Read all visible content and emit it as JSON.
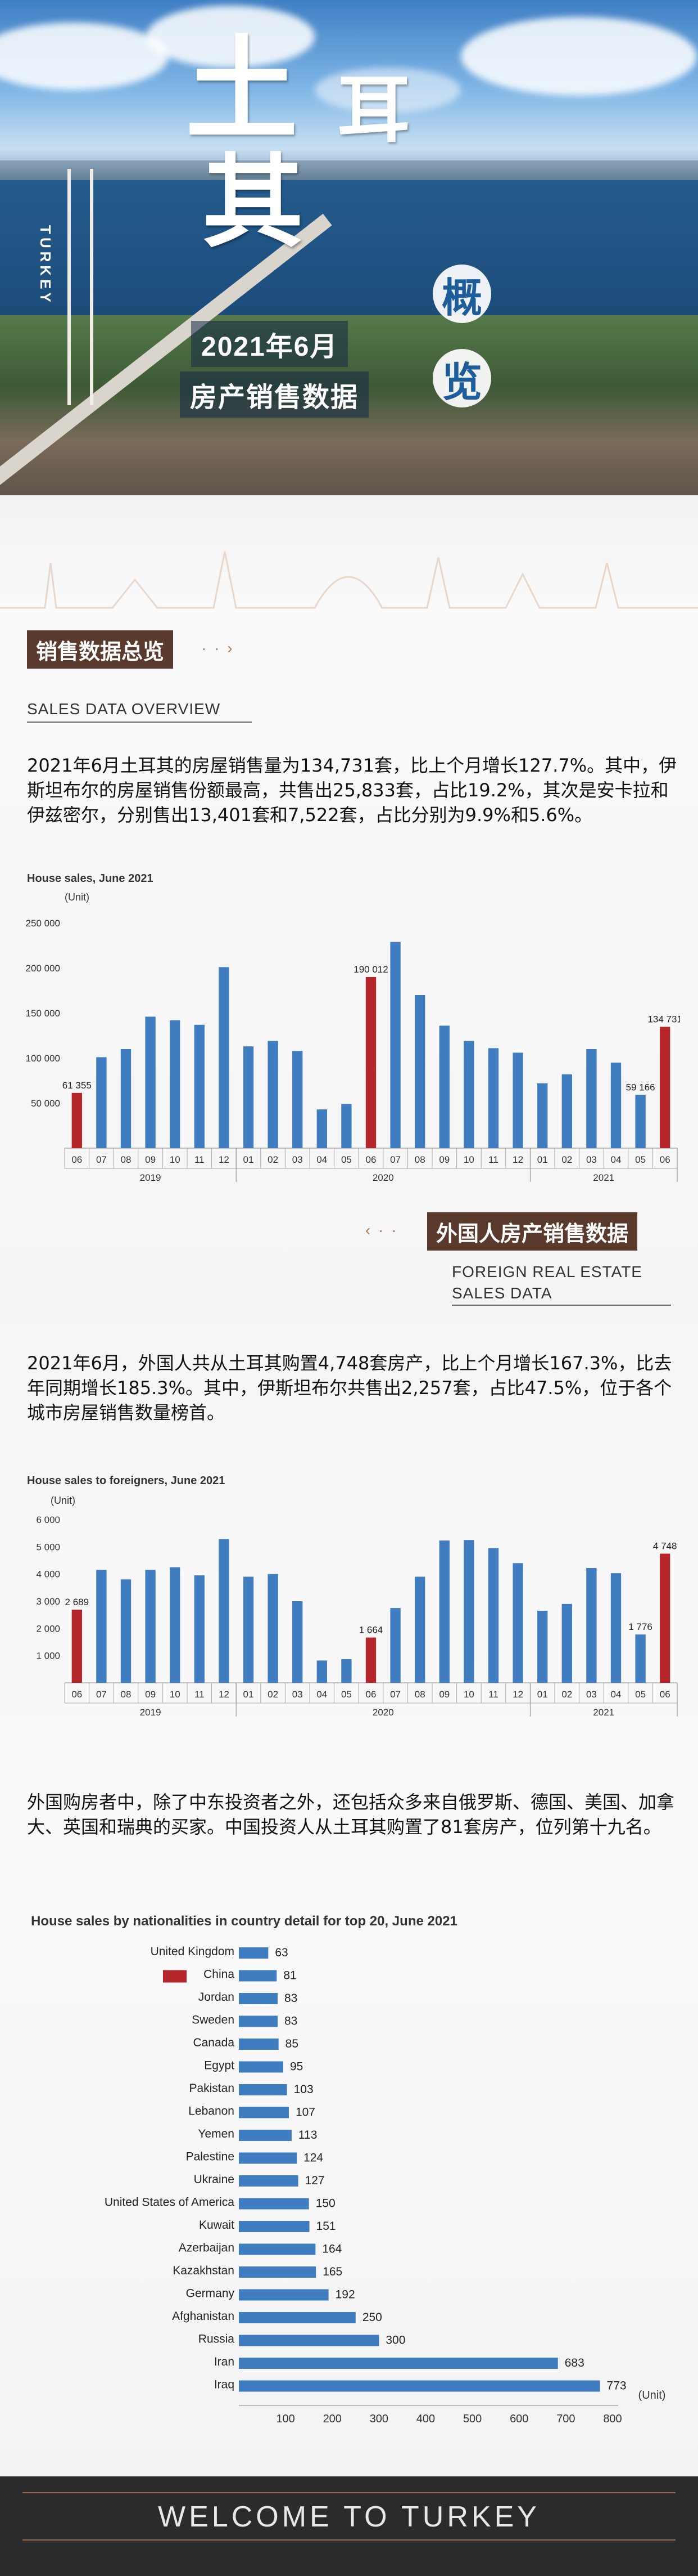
{
  "hero": {
    "turkey_vertical": "TURKEY",
    "title_chars": [
      "土",
      "耳",
      "其"
    ],
    "gai": "概",
    "lan": "览",
    "banner_line1": "2021年6月",
    "banner_line2": "房产销售数据"
  },
  "section1": {
    "title": "销售数据总览",
    "subtitle": "SALES DATA OVERVIEW",
    "paragraph": "2021年6月土耳其的房屋销售量为134,731套，比上个月增长127.7%。其中，伊斯坦布尔的房屋销售份额最高，共售出25,833套，占比19.2%，其次是安卡拉和伊兹密尔，分别售出13,401套和7,522套，占比分别为9.9%和5.6%。"
  },
  "section2": {
    "title": "外国人房产销售数据",
    "subtitle_line1": "FOREIGN REAL ESTATE",
    "subtitle_line2": "SALES DATA",
    "paragraph": "2021年6月，外国人共从土耳其购置4,748套房产，比上个月增长167.3%，比去年同期增长185.3%。其中，伊斯坦布尔共售出2,257套，占比47.5%，位于各个城市房屋销售数量榜首。",
    "paragraph2": "外国购房者中，除了中东投资者之外，还包括众多来自俄罗斯、德国、美国、加拿大、英国和瑞典的买家。中国投资人从土耳其购置了81套房产，位列第十九名。"
  },
  "colors": {
    "bar_blue": "#3f7cc0",
    "bar_red": "#b5262b",
    "section_brown": "#5a3a2c"
  },
  "chart_data": [
    {
      "type": "bar",
      "title": "House sales, June 2021",
      "unit": "(Unit)",
      "categories": [
        "06",
        "07",
        "08",
        "09",
        "10",
        "11",
        "12",
        "01",
        "02",
        "03",
        "04",
        "05",
        "06",
        "07",
        "08",
        "09",
        "10",
        "11",
        "12",
        "01",
        "02",
        "03",
        "04",
        "05",
        "06"
      ],
      "year_labels": [
        "2019",
        "2020",
        "2021"
      ],
      "values": [
        61355,
        101000,
        110000,
        146000,
        142000,
        137000,
        201000,
        113000,
        119000,
        108000,
        43000,
        49000,
        190012,
        229000,
        170000,
        136000,
        119000,
        111000,
        106000,
        72000,
        82000,
        110000,
        95000,
        59166,
        134731
      ],
      "highlight": [
        0,
        12,
        24
      ],
      "data_labels": {
        "0": "61 355",
        "12": "190 012",
        "23": "59 166",
        "24": "134 731"
      },
      "yticks": [
        "50 000",
        "100 000",
        "150 000",
        "200 000",
        "250 000"
      ],
      "ylim": [
        0,
        250000
      ]
    },
    {
      "type": "bar",
      "title": "House sales to foreigners, June 2021",
      "unit": "(Unit)",
      "categories": [
        "06",
        "07",
        "08",
        "09",
        "10",
        "11",
        "12",
        "01",
        "02",
        "03",
        "04",
        "05",
        "06",
        "07",
        "08",
        "09",
        "10",
        "11",
        "12",
        "01",
        "02",
        "03",
        "04",
        "05",
        "06"
      ],
      "year_labels": [
        "2019",
        "2020",
        "2021"
      ],
      "values": [
        2689,
        4150,
        3800,
        4150,
        4250,
        3950,
        5280,
        3900,
        4000,
        3000,
        820,
        870,
        1664,
        2750,
        3900,
        5230,
        5250,
        4950,
        4400,
        2650,
        2900,
        4220,
        4030,
        1776,
        4748
      ],
      "highlight": [
        0,
        12,
        24
      ],
      "data_labels": {
        "0": "2 689",
        "12": "1 664",
        "23": "1 776",
        "24": "4 748"
      },
      "yticks": [
        "1 000",
        "2 000",
        "3 000",
        "4 000",
        "5 000",
        "6 000"
      ],
      "ylim": [
        0,
        6000
      ]
    },
    {
      "type": "bar",
      "orientation": "horizontal",
      "title": "House sales by nationalities in country detail for top 20, June 2021",
      "unit": "(Unit)",
      "categories": [
        "United Kingdom",
        "China",
        "Jordan",
        "Sweden",
        "Canada",
        "Egypt",
        "Pakistan",
        "Lebanon",
        "Yemen",
        "Palestine",
        "Ukraine",
        "United States of America",
        "Kuwait",
        "Azerbaijan",
        "Kazakhstan",
        "Germany",
        "Afghanistan",
        "Russia",
        "Iran",
        "Iraq"
      ],
      "values": [
        63,
        81,
        83,
        83,
        85,
        95,
        103,
        107,
        113,
        124,
        127,
        150,
        151,
        164,
        165,
        192,
        250,
        300,
        683,
        773
      ],
      "highlight": [
        1
      ],
      "xticks": [
        "100",
        "200",
        "300",
        "400",
        "500",
        "600",
        "700",
        "800"
      ],
      "xlim": [
        0,
        800
      ]
    }
  ],
  "footer": {
    "text": "WELCOME TO TURKEY"
  }
}
